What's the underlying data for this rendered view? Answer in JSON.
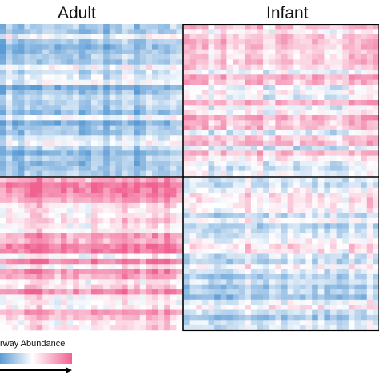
{
  "chart_data": {
    "type": "heatmap",
    "columns": [
      "Adult",
      "Infant"
    ],
    "legend_label": "rway Abundance",
    "colorscale": {
      "low": "#5b9bd5",
      "mid": "#ffffff",
      "high": "#f06292"
    },
    "blocks": [
      {
        "group": "Adult",
        "row_block": "top",
        "mean": -0.45
      },
      {
        "group": "Infant",
        "row_block": "top",
        "mean": 0.15
      },
      {
        "group": "Adult",
        "row_block": "bottom",
        "mean": 0.5
      },
      {
        "group": "Infant",
        "row_block": "bottom",
        "mean": -0.15
      }
    ]
  }
}
